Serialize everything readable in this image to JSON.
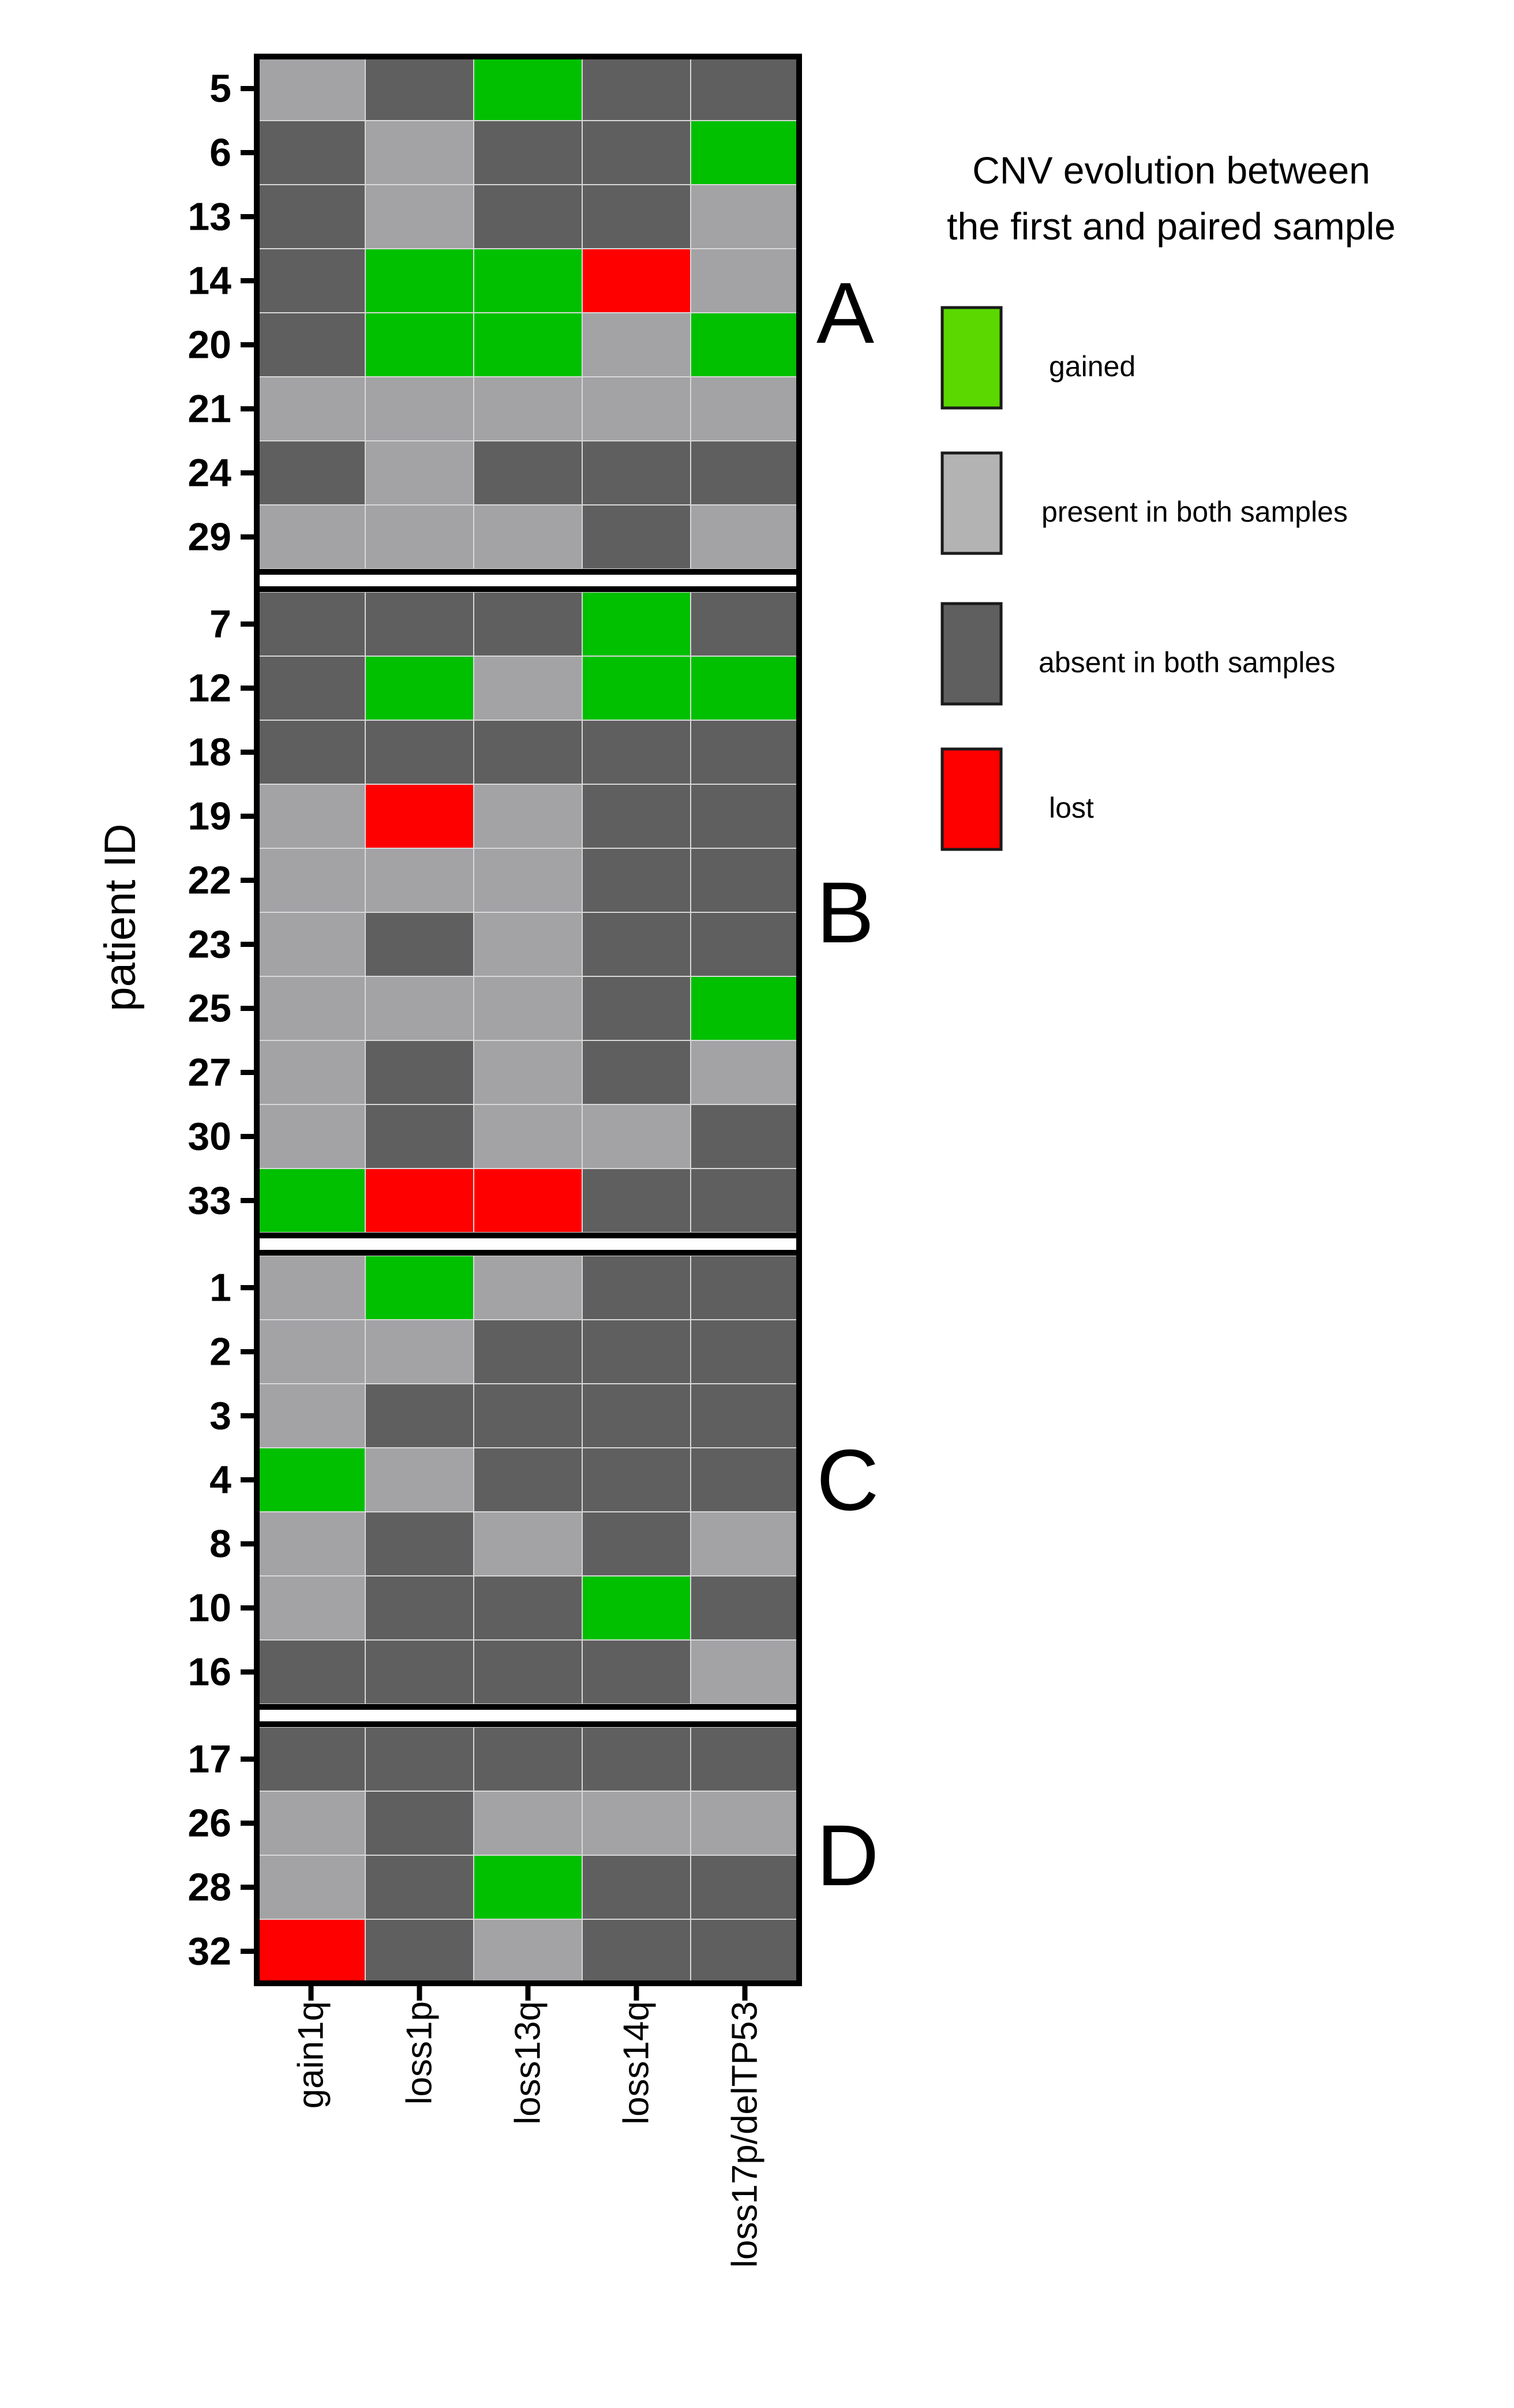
{
  "chart_data": {
    "type": "heatmap",
    "title": "",
    "ylabel": "patient ID",
    "xlabel": "",
    "columns": [
      "gain1q",
      "loss1p",
      "loss13q",
      "loss14q",
      "loss17p/delTP53"
    ],
    "states": {
      "G": {
        "label": "gained",
        "color": "#00c000"
      },
      "P": {
        "label": "present in both samples",
        "color": "#a3a3a6"
      },
      "A": {
        "label": "absent in both samples",
        "color": "#5f5f5f"
      },
      "L": {
        "label": "lost",
        "color": "#ff0000"
      }
    },
    "legend": {
      "title_line1": "CNV evolution between",
      "title_line2": "the first and paired sample",
      "placement": "right",
      "items": [
        {
          "state": "G",
          "label": "gained",
          "color": "#5ad800"
        },
        {
          "state": "P",
          "label": "present in both samples",
          "color": "#b3b3b3"
        },
        {
          "state": "A",
          "label": "absent in both samples",
          "color": "#5f5f5f"
        },
        {
          "state": "L",
          "label": "lost",
          "color": "#ff0000"
        }
      ]
    },
    "groups": [
      {
        "name": "A",
        "rows": [
          {
            "id": "5",
            "cells": [
              "P",
              "A",
              "G",
              "A",
              "A"
            ]
          },
          {
            "id": "6",
            "cells": [
              "A",
              "P",
              "A",
              "A",
              "G"
            ]
          },
          {
            "id": "13",
            "cells": [
              "A",
              "P",
              "A",
              "A",
              "P"
            ]
          },
          {
            "id": "14",
            "cells": [
              "A",
              "G",
              "G",
              "L",
              "P"
            ]
          },
          {
            "id": "20",
            "cells": [
              "A",
              "G",
              "G",
              "P",
              "G"
            ]
          },
          {
            "id": "21",
            "cells": [
              "P",
              "P",
              "P",
              "P",
              "P"
            ]
          },
          {
            "id": "24",
            "cells": [
              "A",
              "P",
              "A",
              "A",
              "A"
            ]
          },
          {
            "id": "29",
            "cells": [
              "P",
              "P",
              "P",
              "A",
              "P"
            ]
          }
        ]
      },
      {
        "name": "B",
        "rows": [
          {
            "id": "7",
            "cells": [
              "A",
              "A",
              "A",
              "G",
              "A"
            ]
          },
          {
            "id": "12",
            "cells": [
              "A",
              "G",
              "P",
              "G",
              "G"
            ]
          },
          {
            "id": "18",
            "cells": [
              "A",
              "A",
              "A",
              "A",
              "A"
            ]
          },
          {
            "id": "19",
            "cells": [
              "P",
              "L",
              "P",
              "A",
              "A"
            ]
          },
          {
            "id": "22",
            "cells": [
              "P",
              "P",
              "P",
              "A",
              "A"
            ]
          },
          {
            "id": "23",
            "cells": [
              "P",
              "A",
              "P",
              "A",
              "A"
            ]
          },
          {
            "id": "25",
            "cells": [
              "P",
              "P",
              "P",
              "A",
              "G"
            ]
          },
          {
            "id": "27",
            "cells": [
              "P",
              "A",
              "P",
              "A",
              "P"
            ]
          },
          {
            "id": "30",
            "cells": [
              "P",
              "A",
              "P",
              "P",
              "A"
            ]
          },
          {
            "id": "33",
            "cells": [
              "G",
              "L",
              "L",
              "A",
              "A"
            ]
          }
        ]
      },
      {
        "name": "C",
        "rows": [
          {
            "id": "1",
            "cells": [
              "P",
              "G",
              "P",
              "A",
              "A"
            ]
          },
          {
            "id": "2",
            "cells": [
              "P",
              "P",
              "A",
              "A",
              "A"
            ]
          },
          {
            "id": "3",
            "cells": [
              "P",
              "A",
              "A",
              "A",
              "A"
            ]
          },
          {
            "id": "4",
            "cells": [
              "G",
              "P",
              "A",
              "A",
              "A"
            ]
          },
          {
            "id": "8",
            "cells": [
              "P",
              "A",
              "P",
              "A",
              "P"
            ]
          },
          {
            "id": "10",
            "cells": [
              "P",
              "A",
              "A",
              "G",
              "A"
            ]
          },
          {
            "id": "16",
            "cells": [
              "A",
              "A",
              "A",
              "A",
              "P"
            ]
          }
        ]
      },
      {
        "name": "D",
        "rows": [
          {
            "id": "17",
            "cells": [
              "A",
              "A",
              "A",
              "A",
              "A"
            ]
          },
          {
            "id": "26",
            "cells": [
              "P",
              "A",
              "P",
              "P",
              "P"
            ]
          },
          {
            "id": "28",
            "cells": [
              "P",
              "A",
              "G",
              "A",
              "A"
            ]
          },
          {
            "id": "32",
            "cells": [
              "L",
              "A",
              "P",
              "A",
              "A"
            ]
          }
        ]
      }
    ]
  }
}
